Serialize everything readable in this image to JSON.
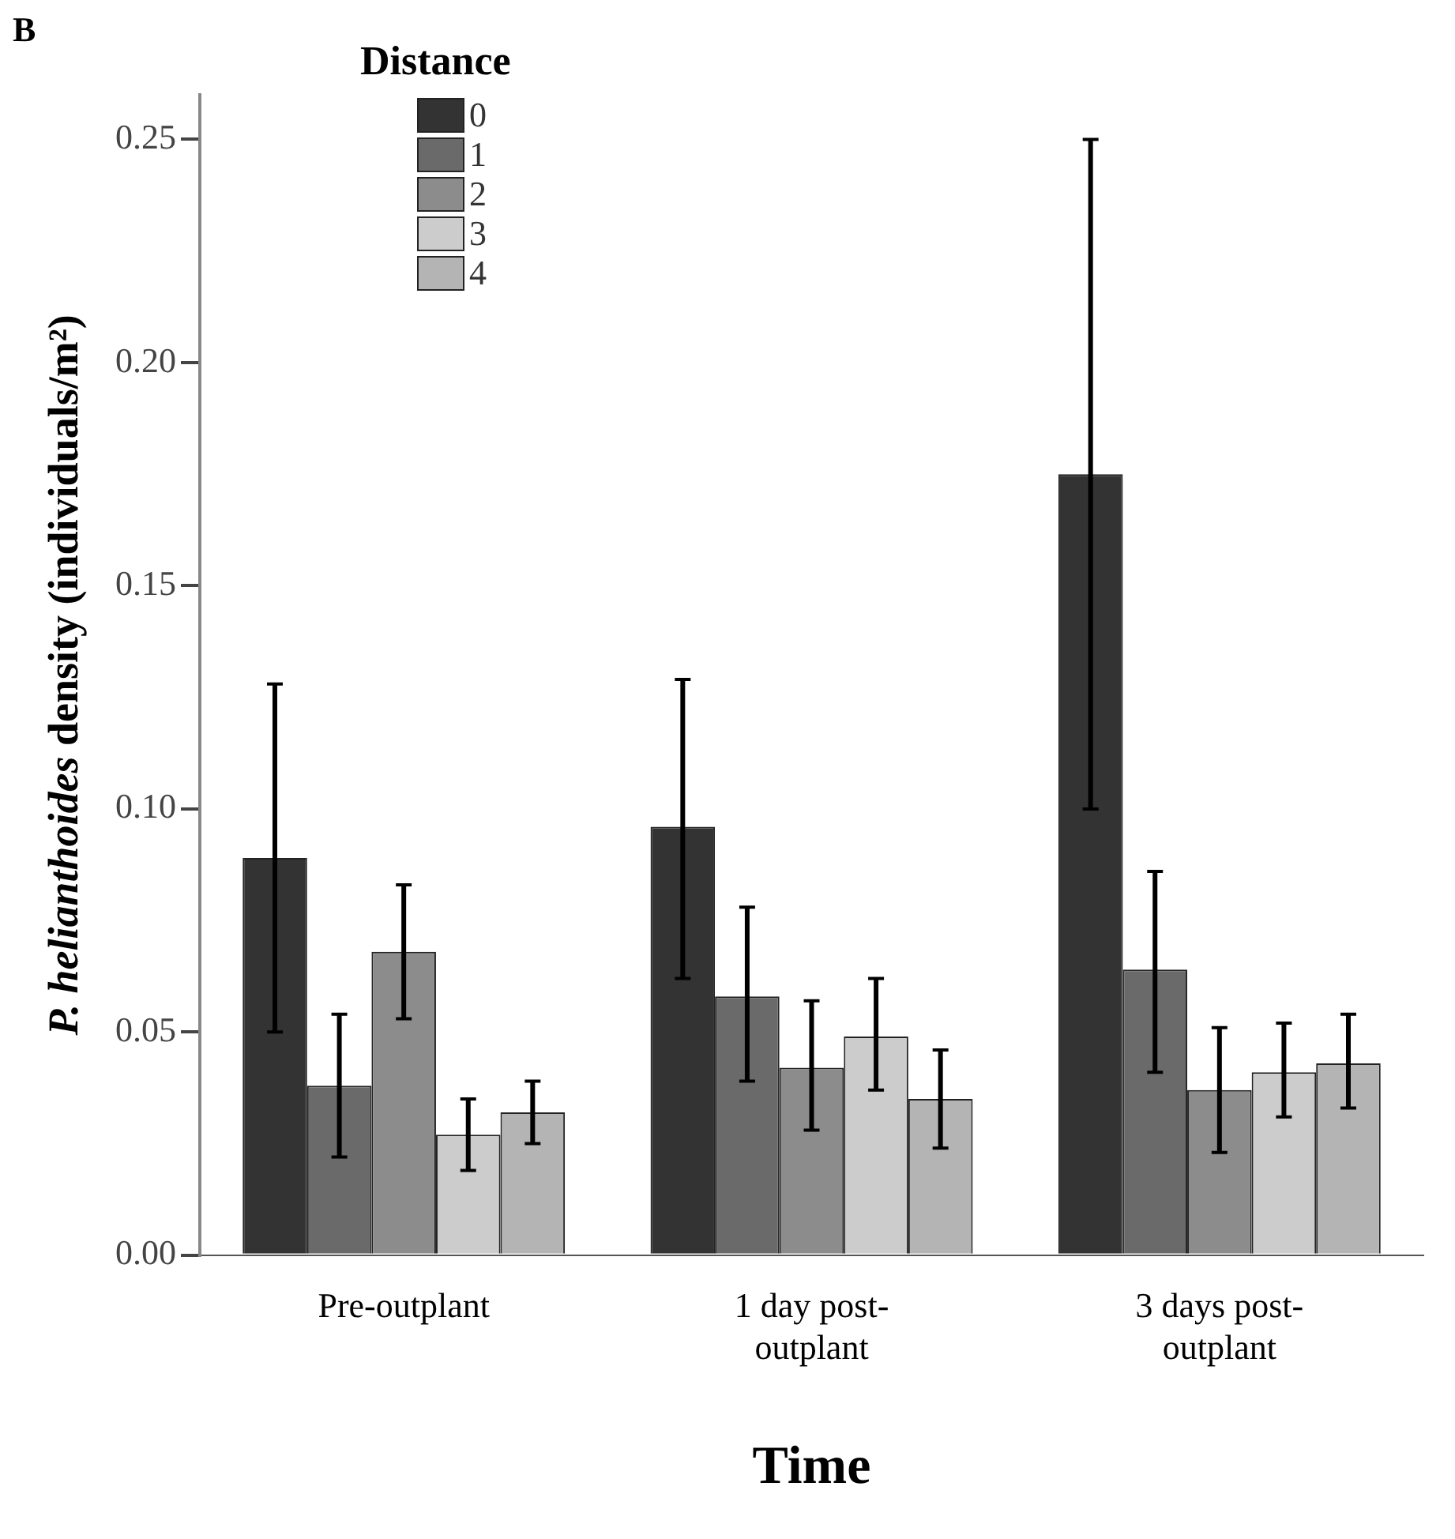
{
  "chart_data": {
    "type": "bar",
    "title": "B",
    "xlabel": "Time",
    "ylabel": "P. helianthoides density (individuals/m²)",
    "legend_title": "Distance",
    "legend": "top left",
    "categories": [
      "Pre-outplant",
      "1 day post-outplant",
      "3 days post-outplant"
    ],
    "series": [
      {
        "name": "0",
        "color": "#333333",
        "values": [
          0.089,
          0.096,
          0.175
        ],
        "errors": [
          [
            0.05,
            0.128
          ],
          [
            0.062,
            0.129
          ],
          [
            0.1,
            0.25
          ]
        ]
      },
      {
        "name": "1",
        "color": "#6a6a6a",
        "values": [
          0.038,
          0.058,
          0.064
        ],
        "errors": [
          [
            0.022,
            0.054
          ],
          [
            0.039,
            0.078
          ],
          [
            0.041,
            0.086
          ]
        ]
      },
      {
        "name": "2",
        "color": "#8c8c8c",
        "values": [
          0.068,
          0.042,
          0.037
        ],
        "errors": [
          [
            0.053,
            0.083
          ],
          [
            0.028,
            0.057
          ],
          [
            0.023,
            0.051
          ]
        ]
      },
      {
        "name": "3",
        "color": "#cccccc",
        "values": [
          0.027,
          0.049,
          0.041
        ],
        "errors": [
          [
            0.019,
            0.035
          ],
          [
            0.037,
            0.062
          ],
          [
            0.031,
            0.052
          ]
        ]
      },
      {
        "name": "4",
        "color": "#b4b4b4",
        "values": [
          0.032,
          0.035,
          0.043
        ],
        "errors": [
          [
            0.025,
            0.039
          ],
          [
            0.024,
            0.046
          ],
          [
            0.033,
            0.054
          ]
        ]
      }
    ],
    "ylim": [
      0,
      0.26
    ],
    "yticks": [
      {
        "value": 0,
        "label": "0.00"
      },
      {
        "value": 0.05,
        "label": "0.05"
      },
      {
        "value": 0.1,
        "label": "0.10"
      },
      {
        "value": 0.15,
        "label": "0.15"
      },
      {
        "value": 0.2,
        "label": "0.20"
      },
      {
        "value": 0.25,
        "label": "0.25"
      }
    ],
    "grid": false
  }
}
